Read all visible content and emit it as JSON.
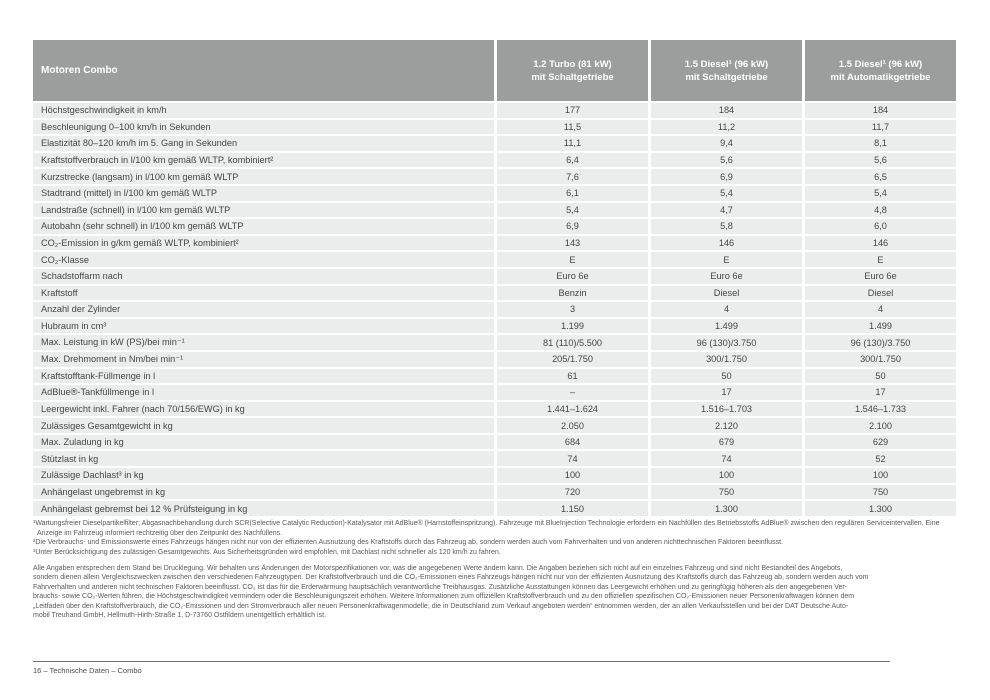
{
  "colors": {
    "header_bg": "#9c9e9e",
    "row_bg": "#ebecec",
    "cell_text": "#454545",
    "fine_text": "#58595b",
    "rule_color": "#6d6e70"
  },
  "table": {
    "header": {
      "label": "Motoren Combo",
      "columns": [
        {
          "line1": "1.2 Turbo (81 kW)",
          "line2": "mit Schaltgetriebe"
        },
        {
          "line1": "1.5 Diesel¹ (96 kW)",
          "line2": "mit Schaltgetriebe"
        },
        {
          "line1": "1.5 Diesel¹ (96 kW)",
          "line2": "mit Automatikgetriebe"
        }
      ]
    },
    "rows": [
      {
        "label": "Höchstgeschwindigkeit in km/h",
        "values": [
          "177",
          "184",
          "184"
        ]
      },
      {
        "label": "Beschleunigung 0–100 km/h in Sekunden",
        "values": [
          "11,5",
          "11,2",
          "11,7"
        ]
      },
      {
        "label": "Elastizität 80–120 km/h im 5. Gang in Sekunden",
        "values": [
          "11,1",
          "9,4",
          "8,1"
        ]
      },
      {
        "label": "Kraftstoffverbrauch in l/100 km gemäß WLTP, kombiniert²",
        "values": [
          "6,4",
          "5,6",
          "5,6"
        ]
      },
      {
        "label": "Kurzstrecke (langsam) in l/100 km gemäß WLTP",
        "values": [
          "7,6",
          "6,9",
          "6,5"
        ]
      },
      {
        "label": "Stadtrand (mittel) in l/100 km gemäß WLTP",
        "values": [
          "6,1",
          "5,4",
          "5,4"
        ]
      },
      {
        "label": "Landstraße (schnell) in l/100 km gemäß WLTP",
        "values": [
          "5,4",
          "4,7",
          "4,8"
        ]
      },
      {
        "label": "Autobahn (sehr schnell) in l/100 km gemäß WLTP",
        "values": [
          "6,9",
          "5,8",
          "6,0"
        ]
      },
      {
        "label": "CO₂-Emission in g/km gemäß WLTP, kombiniert²",
        "values": [
          "143",
          "146",
          "146"
        ]
      },
      {
        "label": "CO₂-Klasse",
        "values": [
          "E",
          "E",
          "E"
        ]
      },
      {
        "label": "Schadstoffarm nach",
        "values": [
          "Euro 6e",
          "Euro 6e",
          "Euro 6e"
        ]
      },
      {
        "label": "Kraftstoff",
        "values": [
          "Benzin",
          "Diesel",
          "Diesel"
        ]
      },
      {
        "label": "Anzahl der Zylinder",
        "values": [
          "3",
          "4",
          "4"
        ]
      },
      {
        "label": "Hubraum in cm³",
        "values": [
          "1.199",
          "1.499",
          "1.499"
        ]
      },
      {
        "label": "Max. Leistung in kW (PS)/bei min⁻¹",
        "values": [
          "81 (110)/5.500",
          "96 (130)/3.750",
          "96 (130)/3.750"
        ]
      },
      {
        "label": "Max. Drehmoment in Nm/bei min⁻¹",
        "values": [
          "205/1.750",
          "300/1.750",
          "300/1.750"
        ]
      },
      {
        "label": "Kraftstofftank-Füllmenge in l",
        "values": [
          "61",
          "50",
          "50"
        ]
      },
      {
        "label": "AdBlue®-Tankfüllmenge in l",
        "values": [
          "–",
          "17",
          "17"
        ]
      },
      {
        "label": "Leergewicht inkl. Fahrer (nach 70/156/EWG) in kg",
        "values": [
          "1.441–1.624",
          "1.516–1.703",
          "1.546–1.733"
        ]
      },
      {
        "label": "Zulässiges Gesamtgewicht in kg",
        "values": [
          "2.050",
          "2.120",
          "2.100"
        ]
      },
      {
        "label": "Max. Zuladung in kg",
        "values": [
          "684",
          "679",
          "629"
        ]
      },
      {
        "label": "Stützlast in kg",
        "values": [
          "74",
          "74",
          "52"
        ]
      },
      {
        "label": "Zulässige Dachlast³ in kg",
        "values": [
          "100",
          "100",
          "100"
        ]
      },
      {
        "label": "Anhängelast ungebremst in kg",
        "values": [
          "720",
          "750",
          "750"
        ]
      },
      {
        "label": "Anhängelast gebremst bei 12 % Prüfsteigung in kg",
        "values": [
          "1.150",
          "1.300",
          "1.300"
        ]
      }
    ]
  },
  "footnotes": [
    "¹Wartungsfreier Dieselpartikelfilter; Abgasnachbehandlung durch SCR(Selective Catalytic Reduction)-Katalysator mit AdBlue® (Harnstoffeinspritzung). Fahrzeuge mit BlueInjection Technologie erfordern ein Nachfüllen des Betriebsstoffs AdBlue® zwischen den regulären Serviceintervallen. Eine Anzeige im Fahrzeug informiert rechtzeitig über den Zeitpunkt des Nachfüllens.",
    "²Die Verbrauchs- und Emissionswerte eines Fahrzeugs hängen nicht nur von der effizienten Ausnutzung des Kraftstoffs durch das Fahrzeug ab, sondern werden auch vom Fahrverhalten und von anderen nichttechnischen Faktoren beeinflusst.",
    "³Unter Berücksichtigung des zulässigen Gesamtgewichts. Aus Sicherheitsgründen wird empfohlen, mit Dachlast nicht schneller als 120 km/h zu fahren."
  ],
  "disclaimer_lines": [
    "Alle Angaben entsprechen dem Stand bei Drucklegung. Wir behalten uns Änderungen der Motorspezifikationen vor, was die angegebenen Werte ändern kann. Die Angaben beziehen sich nicht auf ein einzelnes Fahrzeug und sind nicht Bestandteil des Angebots,",
    "sondern dienen allein Vergleichszwecken zwischen den verschiedenen Fahrzeugtypen. Der Kraftstoffverbrauch und die CO₂-Emissionen eines Fahrzeugs hängen nicht nur von der effizienten Ausnutzung des Kraftstoffs durch das Fahrzeug ab, sondern werden auch vom",
    "Fahrverhalten und anderen nicht technischen Faktoren beeinflusst. CO₂ ist das für die Erderwärmung hauptsächlich verantwortliche Treibhausgas. Zusätzliche Ausstattungen können das Leergewicht erhöhen und zu geringfügig höheren als den angegebenen Ver-",
    "brauchs- sowie CO₂-Werten führen, die Höchstgeschwindigkeit vermindern oder die Beschleunigungszeit erhöhen. Weitere Informationen zum offiziellen Kraftstoffverbrauch und zu den offiziellen spezifischen CO₂-Emissionen neuer Personenkraftwagen können dem",
    "„Leitfaden über den Kraftstoffverbrauch, die CO₂-Emissionen und den Stromverbrauch aller neuen Personenkraftwagenmodelle, die in Deutschland zum Verkauf angeboten werden“ entnommen werden, der an allen Verkaufsstellen und bei der DAT Deutsche Auto-",
    "mobil Treuhand GmbH, Hellmuth-Hirth-Straße 1, D-73760 Ostfildern unentgeltlich erhältlich ist."
  ],
  "footer": {
    "text": "16 – Technische Daten – Combo"
  }
}
